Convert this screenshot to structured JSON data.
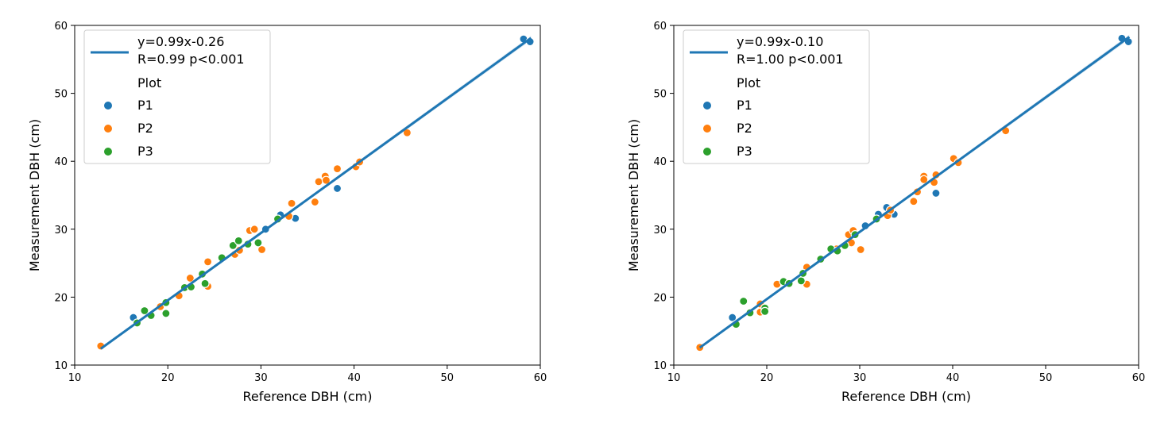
{
  "chart_data": [
    {
      "type": "scatter",
      "xlabel": "Reference DBH (cm)",
      "ylabel": "Measurement DBH (cm)",
      "xlim": [
        10,
        60
      ],
      "ylim": [
        10,
        60
      ],
      "xticks": [
        10,
        20,
        30,
        40,
        50,
        60
      ],
      "yticks": [
        10,
        20,
        30,
        40,
        50,
        60
      ],
      "legend_placement": "upper-left",
      "grid": false,
      "fit_line": {
        "label_line1": "y=0.99x-0.26",
        "label_line2": "R=0.99 p<0.001",
        "slope": 0.99,
        "intercept": -0.26,
        "x_range": [
          12.8,
          59
        ],
        "color": "#1f77b4"
      },
      "legend_title": "Plot",
      "series": [
        {
          "name": "P1",
          "color": "#1f77b4",
          "points": [
            [
              16.3,
              17.0
            ],
            [
              30.5,
              30.0
            ],
            [
              32.1,
              32.1
            ],
            [
              33.7,
              31.6
            ],
            [
              38.2,
              36.0
            ],
            [
              58.2,
              58.0
            ],
            [
              58.9,
              57.6
            ]
          ]
        },
        {
          "name": "P2",
          "color": "#ff7f0e",
          "points": [
            [
              12.8,
              12.8
            ],
            [
              19.2,
              18.6
            ],
            [
              21.2,
              20.2
            ],
            [
              22.4,
              22.8
            ],
            [
              24.3,
              25.2
            ],
            [
              24.3,
              21.6
            ],
            [
              27.2,
              26.3
            ],
            [
              27.7,
              26.9
            ],
            [
              28.8,
              29.8
            ],
            [
              29.3,
              30.0
            ],
            [
              30.1,
              27.0
            ],
            [
              33.0,
              31.9
            ],
            [
              33.3,
              33.8
            ],
            [
              35.8,
              34.0
            ],
            [
              36.2,
              37.0
            ],
            [
              36.9,
              37.8
            ],
            [
              37.0,
              37.2
            ],
            [
              38.2,
              38.9
            ],
            [
              40.2,
              39.2
            ],
            [
              40.6,
              39.9
            ],
            [
              45.7,
              44.2
            ]
          ]
        },
        {
          "name": "P3",
          "color": "#2ca02c",
          "points": [
            [
              16.7,
              16.2
            ],
            [
              17.5,
              18.0
            ],
            [
              18.2,
              17.3
            ],
            [
              19.8,
              19.2
            ],
            [
              19.8,
              17.6
            ],
            [
              21.8,
              21.4
            ],
            [
              22.5,
              21.5
            ],
            [
              23.7,
              23.4
            ],
            [
              24.0,
              22.0
            ],
            [
              25.8,
              25.8
            ],
            [
              27.0,
              27.6
            ],
            [
              27.6,
              28.3
            ],
            [
              28.6,
              27.8
            ],
            [
              29.7,
              28.0
            ],
            [
              31.8,
              31.5
            ]
          ]
        }
      ]
    },
    {
      "type": "scatter",
      "xlabel": "Reference DBH (cm)",
      "ylabel": "Measurement DBH (cm)",
      "xlim": [
        10,
        60
      ],
      "ylim": [
        10,
        60
      ],
      "xticks": [
        10,
        20,
        30,
        40,
        50,
        60
      ],
      "yticks": [
        10,
        20,
        30,
        40,
        50,
        60
      ],
      "legend_placement": "upper-left",
      "grid": false,
      "fit_line": {
        "label_line1": "y=0.99x-0.10",
        "label_line2": "R=1.00 p<0.001",
        "slope": 0.99,
        "intercept": -0.1,
        "x_range": [
          12.8,
          59
        ],
        "color": "#1f77b4"
      },
      "legend_title": "Plot",
      "series": [
        {
          "name": "P1",
          "color": "#1f77b4",
          "points": [
            [
              16.3,
              17.0
            ],
            [
              30.6,
              30.5
            ],
            [
              32.0,
              32.2
            ],
            [
              32.9,
              33.2
            ],
            [
              33.7,
              32.2
            ],
            [
              38.2,
              35.3
            ],
            [
              58.2,
              58.1
            ],
            [
              58.9,
              57.6
            ]
          ]
        },
        {
          "name": "P2",
          "color": "#ff7f0e",
          "points": [
            [
              12.8,
              12.6
            ],
            [
              19.3,
              19.0
            ],
            [
              19.3,
              17.8
            ],
            [
              21.1,
              21.9
            ],
            [
              24.3,
              24.4
            ],
            [
              24.3,
              21.9
            ],
            [
              27.5,
              27.1
            ],
            [
              28.8,
              29.2
            ],
            [
              29.3,
              29.8
            ],
            [
              29.1,
              28.0
            ],
            [
              30.1,
              27.0
            ],
            [
              33.0,
              32.0
            ],
            [
              33.3,
              32.8
            ],
            [
              35.8,
              34.1
            ],
            [
              36.2,
              35.5
            ],
            [
              36.9,
              37.8
            ],
            [
              36.9,
              37.3
            ],
            [
              38.2,
              38.0
            ],
            [
              38.0,
              36.9
            ],
            [
              40.1,
              40.4
            ],
            [
              40.6,
              39.8
            ],
            [
              45.7,
              44.5
            ]
          ]
        },
        {
          "name": "P3",
          "color": "#2ca02c",
          "points": [
            [
              16.7,
              16.0
            ],
            [
              17.5,
              19.4
            ],
            [
              18.2,
              17.7
            ],
            [
              19.8,
              18.4
            ],
            [
              19.8,
              17.9
            ],
            [
              21.8,
              22.3
            ],
            [
              22.4,
              22.0
            ],
            [
              23.7,
              22.4
            ],
            [
              23.9,
              23.5
            ],
            [
              25.8,
              25.6
            ],
            [
              26.9,
              27.1
            ],
            [
              27.6,
              26.8
            ],
            [
              28.4,
              27.6
            ],
            [
              29.5,
              29.2
            ],
            [
              31.8,
              31.5
            ]
          ]
        }
      ]
    }
  ]
}
